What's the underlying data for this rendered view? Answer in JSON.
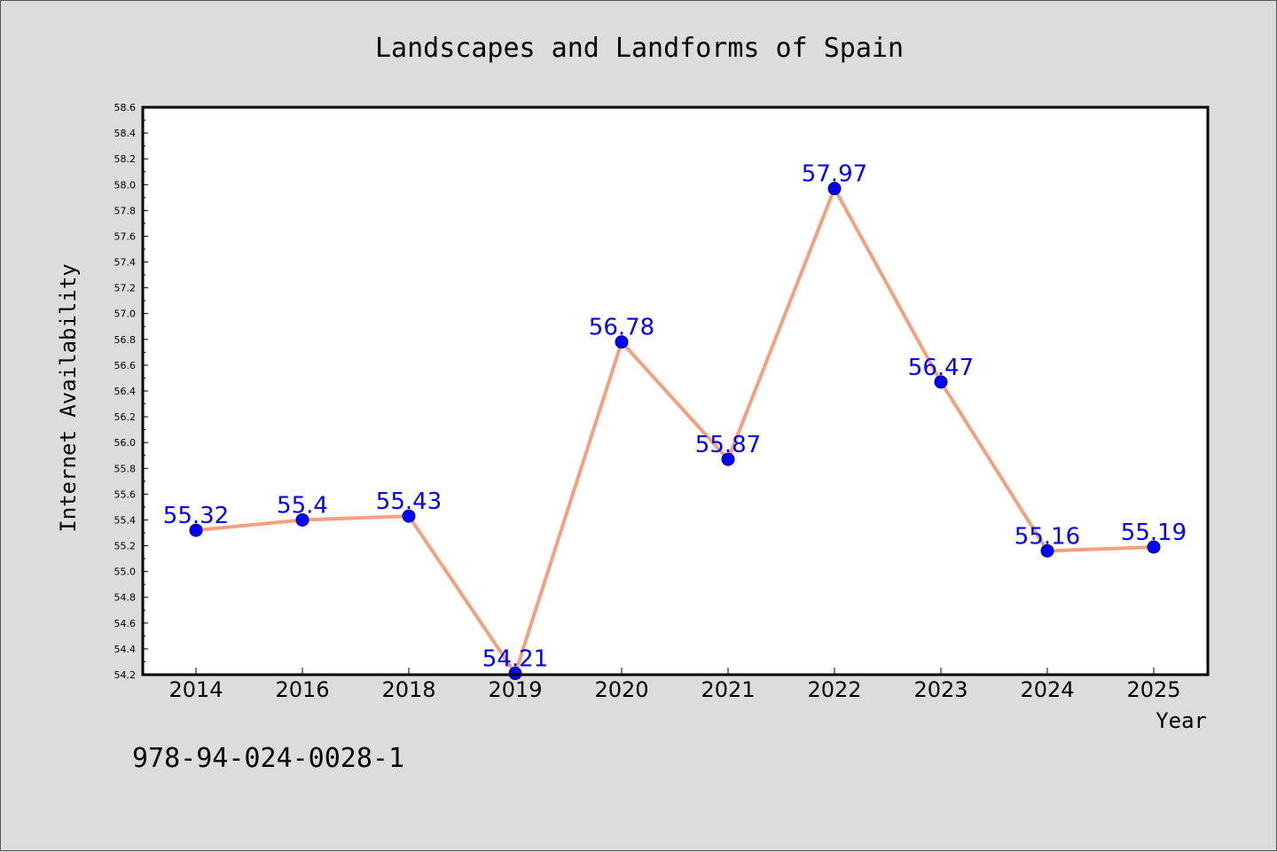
{
  "chart_data": {
    "type": "line",
    "title": "Landscapes and Landforms of Spain",
    "xlabel": "Year",
    "ylabel": "Internet Availability",
    "categories": [
      "2014",
      "2016",
      "2018",
      "2019",
      "2020",
      "2021",
      "2022",
      "2023",
      "2024",
      "2025"
    ],
    "series": [
      {
        "values": [
          55.32,
          55.4,
          55.43,
          54.21,
          56.78,
          55.87,
          57.97,
          56.47,
          55.16,
          55.19
        ],
        "data_labels": [
          "55.32",
          "55.4",
          "55.43",
          "54.21",
          "56.78",
          "55.87",
          "57.97",
          "56.47",
          "55.16",
          "55.19"
        ]
      }
    ],
    "ylim": [
      54.2,
      58.6
    ],
    "yticks": [
      "54.2",
      "54.4",
      "54.6",
      "54.8",
      "55.0",
      "55.2",
      "55.4",
      "55.6",
      "55.8",
      "56.0",
      "56.2",
      "56.4",
      "56.6",
      "56.8",
      "57.0",
      "57.2",
      "57.4",
      "57.6",
      "57.8",
      "58.0",
      "58.2",
      "58.4",
      "58.6"
    ],
    "grid": false,
    "legend": "none",
    "colors": {
      "line": "#f4a07e",
      "marker": "#0000ff",
      "label": "#0000ff",
      "background": "#dcdcdc",
      "plot_background": "#ffffff"
    }
  },
  "footnote": "978-94-024-0028-1"
}
